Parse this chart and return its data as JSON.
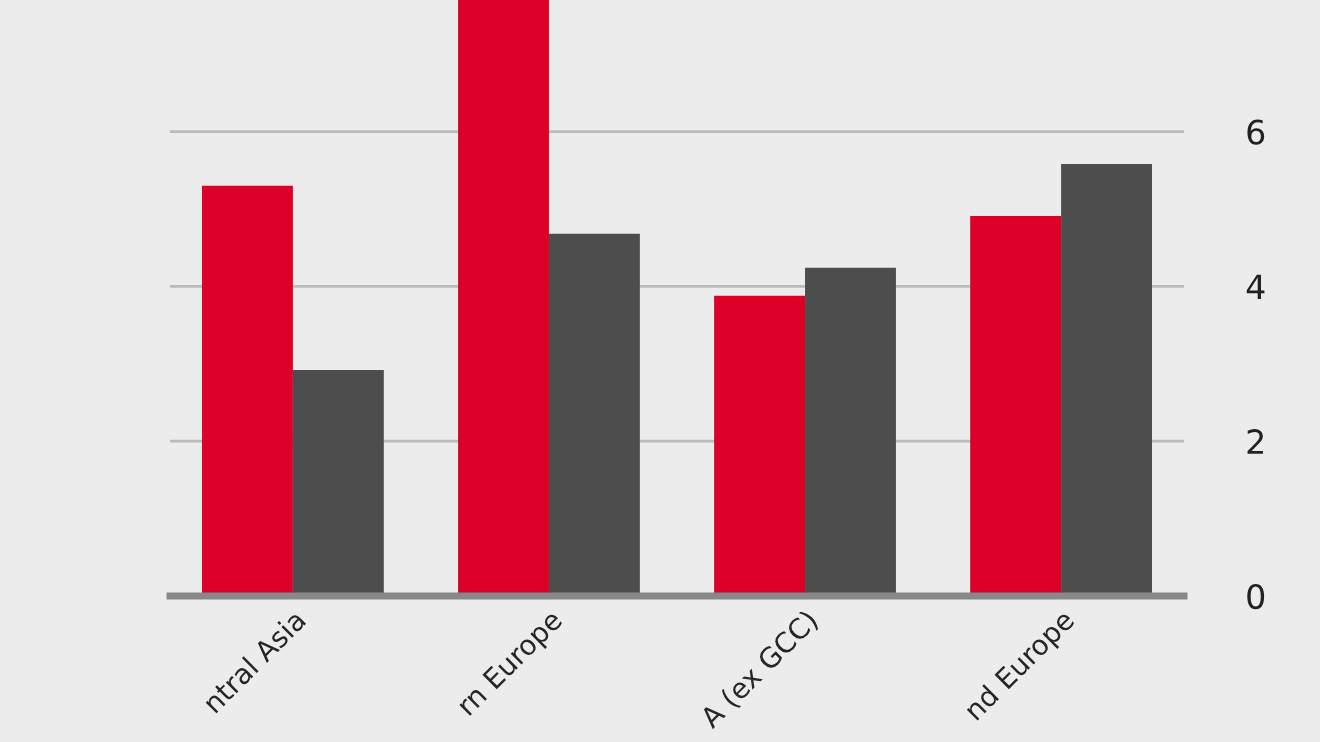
{
  "chart_data": {
    "type": "bar",
    "categories": [
      "ntral Asia",
      "rn Europe",
      "A (ex GCC)",
      "nd Europe"
    ],
    "series": [
      {
        "color": "#dc0028",
        "values": [
          5.3,
          7.7,
          3.88,
          4.91
        ]
      },
      {
        "color": "#4d4d4d",
        "values": [
          2.92,
          4.68,
          4.24,
          5.58
        ]
      }
    ],
    "ylim": [
      0,
      7.7
    ],
    "yticks": [
      0,
      2,
      4,
      6
    ],
    "grid": "y",
    "legend": false
  }
}
